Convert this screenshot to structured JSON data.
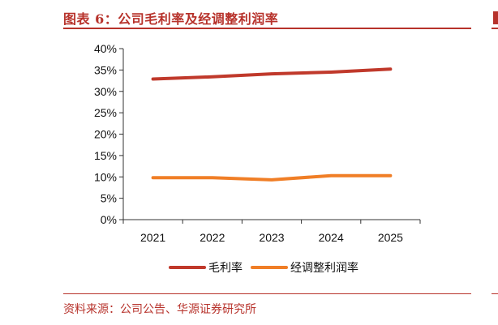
{
  "header": {
    "title": "图表 6：公司毛利率及经调整利润率"
  },
  "footer": {
    "source": "资料来源：公司公告、华源证券研究所"
  },
  "colors": {
    "brand": "#b7322b",
    "series_gross": "#c0392b",
    "series_adjusted": "#f07e26",
    "axis": "#333333"
  },
  "chart_data": {
    "type": "line",
    "title": "",
    "xlabel": "",
    "ylabel": "",
    "categories": [
      "2021",
      "2022",
      "2023",
      "2024",
      "2025"
    ],
    "ylim": [
      0,
      0.4
    ],
    "yticks": [
      0,
      0.05,
      0.1,
      0.15,
      0.2,
      0.25,
      0.3,
      0.35,
      0.4
    ],
    "ytick_labels": [
      "0%",
      "5%",
      "10%",
      "15%",
      "20%",
      "25%",
      "30%",
      "35%",
      "40%"
    ],
    "grid": false,
    "legend_position": "bottom",
    "series": [
      {
        "name": "毛利率",
        "color": "#c0392b",
        "values": [
          0.329,
          0.334,
          0.341,
          0.345,
          0.352
        ]
      },
      {
        "name": "经调整利润率",
        "color": "#f07e26",
        "values": [
          0.098,
          0.098,
          0.093,
          0.103,
          0.103
        ]
      }
    ]
  }
}
